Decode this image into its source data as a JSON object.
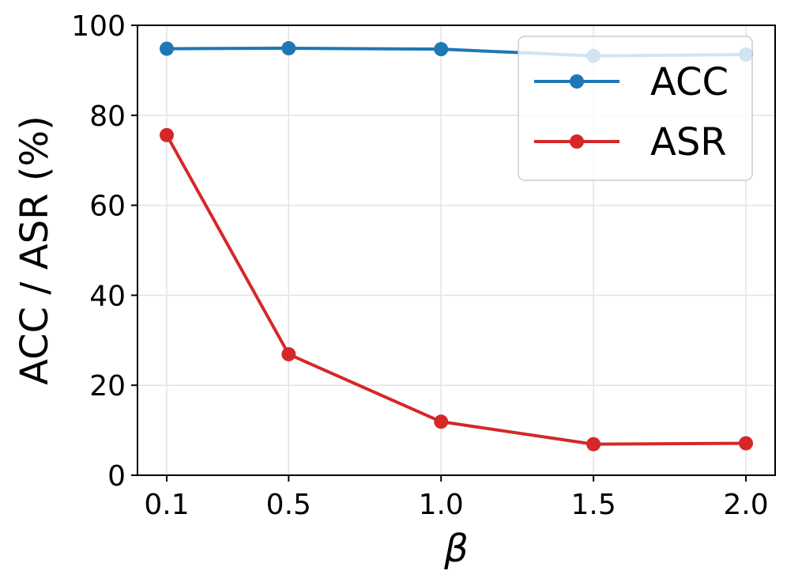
{
  "chart_data": {
    "type": "line",
    "x_is_categorical": true,
    "categories": [
      "0.1",
      "0.5",
      "1.0",
      "1.5",
      "2.0"
    ],
    "series": [
      {
        "name": "ACC",
        "values": [
          94.8,
          94.9,
          94.7,
          93.2,
          93.5
        ],
        "color": "#1f77b4"
      },
      {
        "name": "ASR",
        "values": [
          75.6,
          26.9,
          11.9,
          6.9,
          7.1
        ],
        "color": "#d62728"
      }
    ],
    "title": "",
    "xlabel": "β",
    "ylabel": "ACC / ASR (%)",
    "ylim": [
      0,
      100
    ],
    "yticks": [
      "0",
      "20",
      "40",
      "60",
      "80",
      "100"
    ],
    "grid": true,
    "legend_position": "top-right",
    "marker": "circle"
  }
}
